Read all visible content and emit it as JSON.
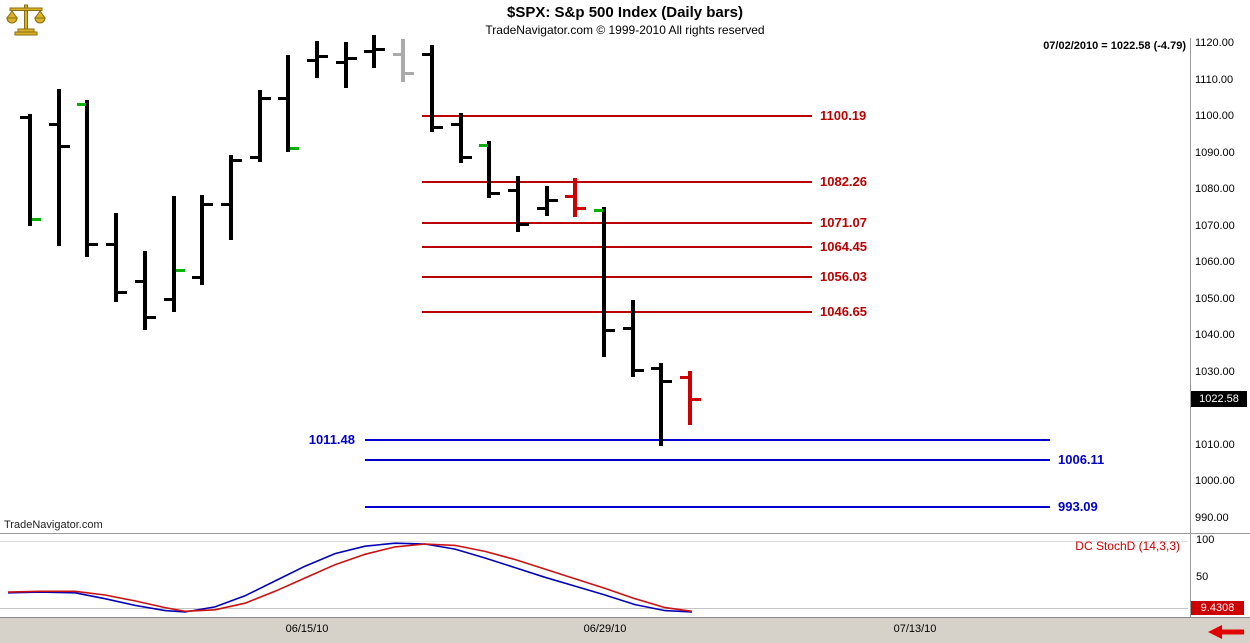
{
  "header": {
    "title": "$SPX:  S&p 500 Index  (Daily bars)",
    "subtitle": "TradeNavigator.com © 1999-2010 All rights reserved",
    "quote": "07/02/2010 = 1022.58 (-4.79)"
  },
  "watermark": "TradeNavigator.com",
  "colors": {
    "bar_black": "#000000",
    "bar_red": "#cc0000",
    "bar_gray": "#aaaaaa",
    "tick_green": "#00b300",
    "level_red": "#bb0000",
    "level_blue": "#0000cc",
    "stoch_blue": "#0000bb",
    "stoch_red": "#cc1111",
    "badge_black_bg": "#000000",
    "badge_red_bg": "#cc0000",
    "band_bg": "#d6d2c9",
    "arrow_red": "#e00000"
  },
  "chart_data": {
    "type": "ohlc-bars",
    "title": "$SPX: S&p 500 Index (Daily bars)",
    "last_date": "07/02/2010",
    "last_price": 1022.58,
    "change": -4.79,
    "y_axis": {
      "min": 990,
      "max": 1120,
      "ticks": [
        "1120.00",
        "1110.00",
        "1100.00",
        "1090.00",
        "1080.00",
        "1070.00",
        "1060.00",
        "1050.00",
        "1040.00",
        "1030.00",
        "1010.00",
        "1000.00",
        "990.00"
      ]
    },
    "price_badge": "1022.58",
    "bars": [
      {
        "h": 1100.8,
        "l": 1070.0,
        "o": 1100.0,
        "c": 1072.0,
        "color": "black",
        "c_green": true
      },
      {
        "h": 1107.7,
        "l": 1064.6,
        "o": 1098.0,
        "c": 1092.0,
        "color": "black"
      },
      {
        "h": 1104.6,
        "l": 1061.6,
        "o": 1103.5,
        "c": 1065.0,
        "color": "black",
        "o_green": true
      },
      {
        "h": 1073.7,
        "l": 1049.3,
        "o": 1065.0,
        "c": 1052.0,
        "color": "black"
      },
      {
        "h": 1063.2,
        "l": 1041.6,
        "o": 1055.0,
        "c": 1045.0,
        "color": "black"
      },
      {
        "h": 1078.3,
        "l": 1046.5,
        "o": 1050.0,
        "c": 1058.0,
        "color": "black",
        "c_green": true
      },
      {
        "h": 1078.6,
        "l": 1053.9,
        "o": 1056.0,
        "c": 1076.0,
        "color": "black"
      },
      {
        "h": 1089.6,
        "l": 1066.3,
        "o": 1076.0,
        "c": 1088.0,
        "color": "black"
      },
      {
        "h": 1107.4,
        "l": 1087.6,
        "o": 1089.0,
        "c": 1105.0,
        "color": "black"
      },
      {
        "h": 1117.0,
        "l": 1090.4,
        "o": 1105.0,
        "c": 1091.5,
        "color": "black",
        "c_green": true
      },
      {
        "h": 1120.9,
        "l": 1110.7,
        "o": 1115.5,
        "c": 1116.5,
        "color": "black"
      },
      {
        "h": 1120.5,
        "l": 1107.9,
        "o": 1115.0,
        "c": 1116.0,
        "color": "black"
      },
      {
        "h": 1122.5,
        "l": 1113.4,
        "o": 1118.0,
        "c": 1118.5,
        "color": "black"
      },
      {
        "h": 1121.5,
        "l": 1109.6,
        "o": 1117.0,
        "c": 1112.0,
        "color": "gray"
      },
      {
        "h": 1119.7,
        "l": 1095.9,
        "o": 1117.0,
        "c": 1097.0,
        "color": "black"
      },
      {
        "h": 1101.1,
        "l": 1087.4,
        "o": 1098.0,
        "c": 1089.0,
        "color": "black"
      },
      {
        "h": 1093.4,
        "l": 1077.8,
        "o": 1092.3,
        "c": 1079.0,
        "color": "black",
        "o_green": true
      },
      {
        "h": 1083.8,
        "l": 1068.5,
        "o": 1080.0,
        "c": 1070.5,
        "color": "black"
      },
      {
        "h": 1081.1,
        "l": 1072.8,
        "o": 1075.0,
        "c": 1077.2,
        "color": "black"
      },
      {
        "h": 1083.3,
        "l": 1072.6,
        "o": 1078.3,
        "c": 1075.0,
        "color": "red"
      },
      {
        "h": 1075.3,
        "l": 1034.2,
        "o": 1074.5,
        "c": 1041.6,
        "color": "black",
        "o_green": true
      },
      {
        "h": 1049.8,
        "l": 1028.7,
        "o": 1042.0,
        "c": 1030.6,
        "color": "black"
      },
      {
        "h": 1032.5,
        "l": 1009.8,
        "o": 1031.0,
        "c": 1027.5,
        "color": "black"
      },
      {
        "h": 1030.3,
        "l": 1015.5,
        "o": 1028.6,
        "c": 1022.58,
        "color": "red"
      }
    ],
    "resistance_levels": [
      {
        "value": 1100.19,
        "label": "1100.19"
      },
      {
        "value": 1082.26,
        "label": "1082.26"
      },
      {
        "value": 1071.07,
        "label": "1071.07"
      },
      {
        "value": 1064.45,
        "label": "1064.45"
      },
      {
        "value": 1056.03,
        "label": "1056.03"
      },
      {
        "value": 1046.65,
        "label": "1046.65"
      }
    ],
    "support_levels": [
      {
        "value": 1011.48,
        "label": "1011.48",
        "label_side": "left"
      },
      {
        "value": 1006.11,
        "label": "1006.11",
        "label_side": "right"
      },
      {
        "value": 993.09,
        "label": "993.09",
        "label_side": "right"
      }
    ],
    "x_axis": {
      "labels": [
        "06/15/10",
        "06/29/10",
        "07/13/10"
      ]
    },
    "indicator": {
      "name": "DC StochD (14,3,3)",
      "type": "line",
      "ylim": [
        0,
        100
      ],
      "ticks": [
        "100",
        "50"
      ],
      "value_badge": "9.4308",
      "series": [
        {
          "name": "StochD fast",
          "color_key": "stoch_blue",
          "points": [
            [
              8,
              30
            ],
            [
              40,
              31
            ],
            [
              75,
              30
            ],
            [
              105,
              22
            ],
            [
              135,
              13
            ],
            [
              165,
              6
            ],
            [
              185,
              4
            ],
            [
              215,
              11
            ],
            [
              245,
              26
            ],
            [
              275,
              46
            ],
            [
              305,
              66
            ],
            [
              335,
              83
            ],
            [
              365,
              93
            ],
            [
              395,
              97
            ],
            [
              425,
              96
            ],
            [
              455,
              89
            ],
            [
              485,
              77
            ],
            [
              515,
              64
            ],
            [
              545,
              51
            ],
            [
              575,
              39
            ],
            [
              605,
              27
            ],
            [
              635,
              14
            ],
            [
              665,
              6
            ],
            [
              692,
              4
            ]
          ]
        },
        {
          "name": "StochD slow",
          "color_key": "stoch_red",
          "points": [
            [
              8,
              31
            ],
            [
              40,
              32
            ],
            [
              75,
              32
            ],
            [
              105,
              27
            ],
            [
              135,
              19
            ],
            [
              165,
              10
            ],
            [
              185,
              5
            ],
            [
              215,
              7
            ],
            [
              245,
              16
            ],
            [
              275,
              32
            ],
            [
              305,
              50
            ],
            [
              335,
              68
            ],
            [
              365,
              82
            ],
            [
              395,
              92
            ],
            [
              425,
              96
            ],
            [
              455,
              94
            ],
            [
              485,
              86
            ],
            [
              515,
              75
            ],
            [
              545,
              62
            ],
            [
              575,
              49
            ],
            [
              605,
              36
            ],
            [
              635,
              22
            ],
            [
              665,
              10
            ],
            [
              692,
              5
            ]
          ]
        }
      ]
    }
  }
}
